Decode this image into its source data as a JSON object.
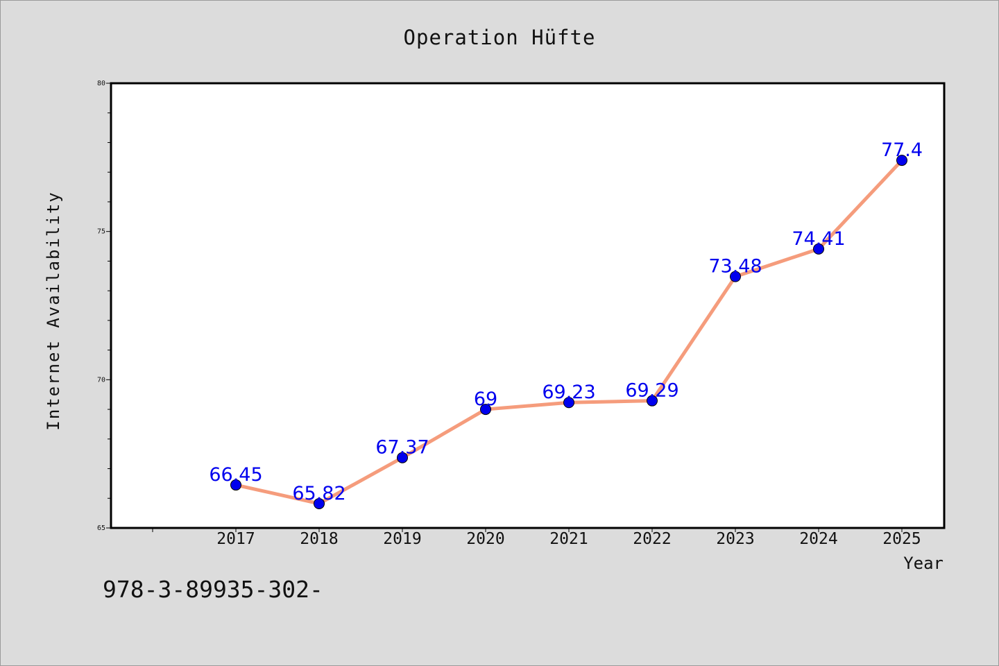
{
  "chart_data": {
    "type": "line",
    "title": "Operation Hüfte",
    "xlabel": "Year",
    "ylabel": "Internet Availability",
    "categories": [
      "2017",
      "2018",
      "2019",
      "2020",
      "2021",
      "2022",
      "2023",
      "2024",
      "2025"
    ],
    "series": [
      {
        "values": [
          66.45,
          65.82,
          67.37,
          69,
          69.23,
          69.29,
          73.48,
          74.41,
          77.4
        ],
        "labels": [
          "66.45",
          "65.82",
          "67.37",
          "69",
          "69.23",
          "69.29",
          "73.48",
          "74.41",
          "77.4"
        ],
        "line_color": "#f59c7c",
        "marker_color": "#0000ee"
      }
    ],
    "ylim": [
      65,
      80
    ],
    "yticks": [
      "65",
      "70",
      "75",
      "80"
    ],
    "grid": false,
    "legend": "none"
  },
  "footnote": "978-3-89935-302-",
  "colors": {
    "background": "#dcdcdc",
    "plot_background": "#ffffff",
    "axis": "#000000",
    "label": "#0000ee"
  }
}
